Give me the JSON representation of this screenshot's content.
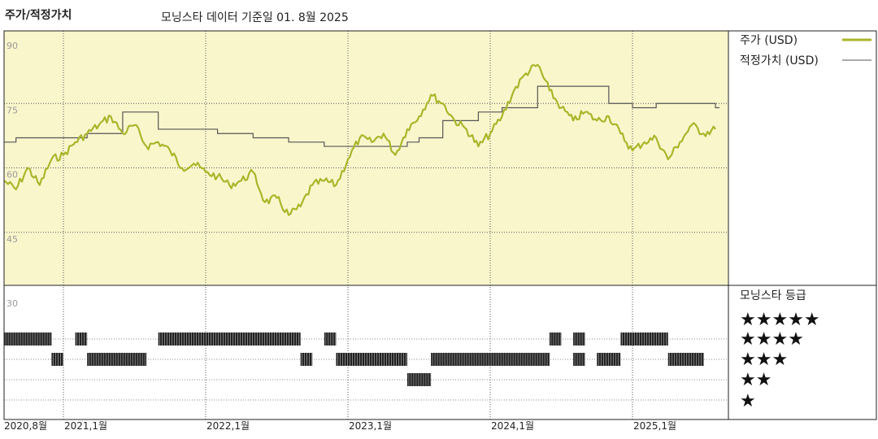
{
  "title": "주가/적정가치",
  "subtitle": "모닝스타 데이터 기준일 01. 8월 2025",
  "colors": {
    "price": "#a9b62a",
    "fair": "#555555",
    "panel": "#faf6cc",
    "rating": "#222222"
  },
  "legend": {
    "price_label": "주가 (USD)",
    "fair_label": "적정가치 (USD)",
    "rating_title": "모닝스타 등급"
  },
  "rating_stars": [
    "★★★★★",
    "★★★★",
    "★★★",
    "★★",
    "★"
  ],
  "chart_data": {
    "type": "line",
    "ylim": [
      30,
      90
    ],
    "yticks": [
      "90",
      "75",
      "60",
      "45",
      "30"
    ],
    "xticks": [
      "2020,8월",
      "2021,1월",
      "2022,1월",
      "2023,1월",
      "2024,1월",
      "2025,1월"
    ],
    "series": [
      {
        "name": "주가 (USD)",
        "points": [
          [
            "2020-08",
            57
          ],
          [
            "2020-09",
            55
          ],
          [
            "2020-10",
            60
          ],
          [
            "2020-11",
            56
          ],
          [
            "2020-12",
            62
          ],
          [
            "2021-01",
            63
          ],
          [
            "2021-02",
            66
          ],
          [
            "2021-03",
            68
          ],
          [
            "2021-04",
            70
          ],
          [
            "2021-05",
            72
          ],
          [
            "2021-06",
            68
          ],
          [
            "2021-07",
            70
          ],
          [
            "2021-08",
            65
          ],
          [
            "2021-09",
            66
          ],
          [
            "2021-10",
            64
          ],
          [
            "2021-11",
            60
          ],
          [
            "2021-12",
            61
          ],
          [
            "2022-01",
            59
          ],
          [
            "2022-02",
            58
          ],
          [
            "2022-03",
            56
          ],
          [
            "2022-04",
            57
          ],
          [
            "2022-05",
            59
          ],
          [
            "2022-06",
            52
          ],
          [
            "2022-07",
            53
          ],
          [
            "2022-08",
            49
          ],
          [
            "2022-09",
            51
          ],
          [
            "2022-10",
            56
          ],
          [
            "2022-11",
            57
          ],
          [
            "2022-12",
            56
          ],
          [
            "2023-01",
            62
          ],
          [
            "2023-02",
            67
          ],
          [
            "2023-03",
            66
          ],
          [
            "2023-04",
            68
          ],
          [
            "2023-05",
            63
          ],
          [
            "2023-06",
            69
          ],
          [
            "2023-07",
            72
          ],
          [
            "2023-08",
            77
          ],
          [
            "2023-09",
            75
          ],
          [
            "2023-10",
            71
          ],
          [
            "2023-11",
            69
          ],
          [
            "2023-12",
            65
          ],
          [
            "2024-01",
            68
          ],
          [
            "2024-02",
            72
          ],
          [
            "2024-03",
            78
          ],
          [
            "2024-04",
            82
          ],
          [
            "2024-05",
            84
          ],
          [
            "2024-06",
            78
          ],
          [
            "2024-07",
            74
          ],
          [
            "2024-08",
            71
          ],
          [
            "2024-09",
            73
          ],
          [
            "2024-10",
            71
          ],
          [
            "2024-11",
            72
          ],
          [
            "2024-12",
            68
          ],
          [
            "2025-01",
            64
          ],
          [
            "2025-02",
            66
          ],
          [
            "2025-03",
            67
          ],
          [
            "2025-04",
            62
          ],
          [
            "2025-05",
            66
          ],
          [
            "2025-06",
            70
          ],
          [
            "2025-07",
            68
          ],
          [
            "2025-08",
            69
          ]
        ]
      },
      {
        "name": "적정가치 (USD)",
        "points": [
          [
            "2020-08",
            66
          ],
          [
            "2020-09",
            67
          ],
          [
            "2021-03",
            68
          ],
          [
            "2021-06",
            73
          ],
          [
            "2021-09",
            69
          ],
          [
            "2022-02",
            68
          ],
          [
            "2022-05",
            67
          ],
          [
            "2022-08",
            66
          ],
          [
            "2022-11",
            65
          ],
          [
            "2023-06",
            66
          ],
          [
            "2023-07",
            67
          ],
          [
            "2023-09",
            71
          ],
          [
            "2023-12",
            73
          ],
          [
            "2024-02",
            74
          ],
          [
            "2024-05",
            79
          ],
          [
            "2024-07",
            79
          ],
          [
            "2024-11",
            75
          ],
          [
            "2025-01",
            74
          ],
          [
            "2025-03",
            75
          ],
          [
            "2025-08",
            74
          ]
        ]
      }
    ],
    "rating_periods": [
      {
        "stars": 5,
        "from": "2020-08",
        "to": "2020-12"
      },
      {
        "stars": 5,
        "from": "2021-02",
        "to": "2021-03"
      },
      {
        "stars": 5,
        "from": "2021-09",
        "to": "2022-09"
      },
      {
        "stars": 5,
        "from": "2022-11",
        "to": "2022-12"
      },
      {
        "stars": 5,
        "from": "2024-06",
        "to": "2024-07"
      },
      {
        "stars": 5,
        "from": "2024-08",
        "to": "2024-09"
      },
      {
        "stars": 5,
        "from": "2024-12",
        "to": "2025-04"
      },
      {
        "stars": 4,
        "from": "2020-12",
        "to": "2021-01"
      },
      {
        "stars": 4,
        "from": "2021-03",
        "to": "2021-08"
      },
      {
        "stars": 4,
        "from": "2022-09",
        "to": "2022-10"
      },
      {
        "stars": 4,
        "from": "2022-12",
        "to": "2023-06"
      },
      {
        "stars": 4,
        "from": "2023-08",
        "to": "2024-06"
      },
      {
        "stars": 4,
        "from": "2024-08",
        "to": "2024-09"
      },
      {
        "stars": 4,
        "from": "2024-10",
        "to": "2024-12"
      },
      {
        "stars": 4,
        "from": "2025-04",
        "to": "2025-07"
      },
      {
        "stars": 3,
        "from": "2023-06",
        "to": "2023-08"
      }
    ]
  }
}
